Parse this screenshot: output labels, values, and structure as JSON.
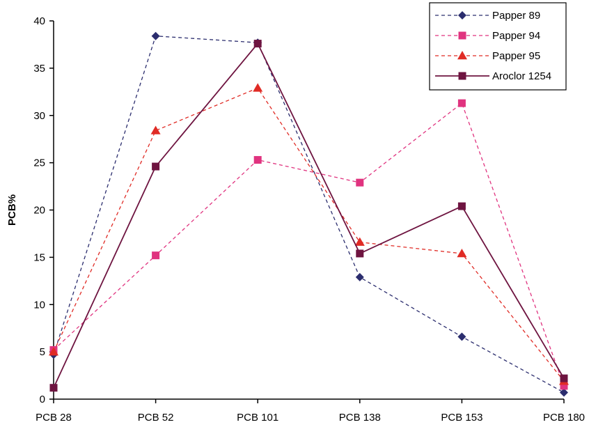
{
  "chart_data": {
    "type": "line",
    "title": "",
    "xlabel": "",
    "ylabel": "PCB%",
    "ylim": [
      0,
      40
    ],
    "yticks": [
      0,
      5,
      10,
      15,
      20,
      25,
      30,
      35,
      40
    ],
    "grid": false,
    "legend_position": "top-right",
    "categories": [
      "PCB 28",
      "PCB 52",
      "PCB 101",
      "PCB 138",
      "PCB 153",
      "PCB 180"
    ],
    "series": [
      {
        "name": "Papper 89",
        "values": [
          4.7,
          38.4,
          37.7,
          12.9,
          6.6,
          0.7
        ],
        "color": "#2b2d6e",
        "marker": "diamond",
        "dash": true
      },
      {
        "name": "Papper 94",
        "values": [
          5.2,
          15.2,
          25.3,
          22.9,
          31.3,
          1.4
        ],
        "color": "#e0337f",
        "marker": "square",
        "dash": true
      },
      {
        "name": "Papper 95",
        "values": [
          5.0,
          28.4,
          32.9,
          16.6,
          15.4,
          1.9
        ],
        "color": "#e02b25",
        "marker": "triangle",
        "dash": true
      },
      {
        "name": "Aroclor 1254",
        "values": [
          1.2,
          24.6,
          37.6,
          15.4,
          20.4,
          2.2
        ],
        "color": "#6e1440",
        "marker": "square",
        "dash": false
      }
    ]
  }
}
